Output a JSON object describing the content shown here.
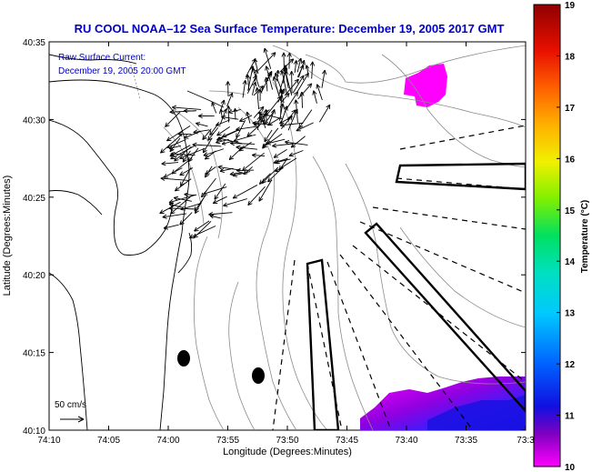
{
  "chart_data": {
    "type": "map",
    "title": "RU COOL   NOAA–12  Sea Surface Temperature:  December 19, 2005 2017 GMT",
    "subtitle_line1": "Raw Surface Current:",
    "subtitle_line2": "December 19, 2005 20:00 GMT",
    "xlabel": "Longitude (Degrees:Minutes)",
    "ylabel": "Latitude (Degrees:Minutes)",
    "x_ticks": [
      "74:10",
      "74:05",
      "74:00",
      "73:55",
      "73:50",
      "73:45",
      "73:40",
      "73:35",
      "73:3"
    ],
    "y_ticks": [
      "40:35",
      "40:30",
      "40:25",
      "40:20",
      "40:15",
      "40:10"
    ],
    "scale_label": "50 cm/s",
    "colorbar": {
      "label": "Temperature (°C)",
      "ticks": [
        "19",
        "18",
        "17",
        "16",
        "15",
        "14",
        "13",
        "12",
        "11",
        "10"
      ],
      "range": [
        10,
        19
      ],
      "colors": [
        "#ff00ff",
        "#6a00c8",
        "#0018ff",
        "#00a0ff",
        "#00e0e0",
        "#00e070",
        "#b0f000",
        "#ffe000",
        "#ff9000",
        "#ff3000",
        "#d00000",
        "#900000"
      ]
    }
  }
}
